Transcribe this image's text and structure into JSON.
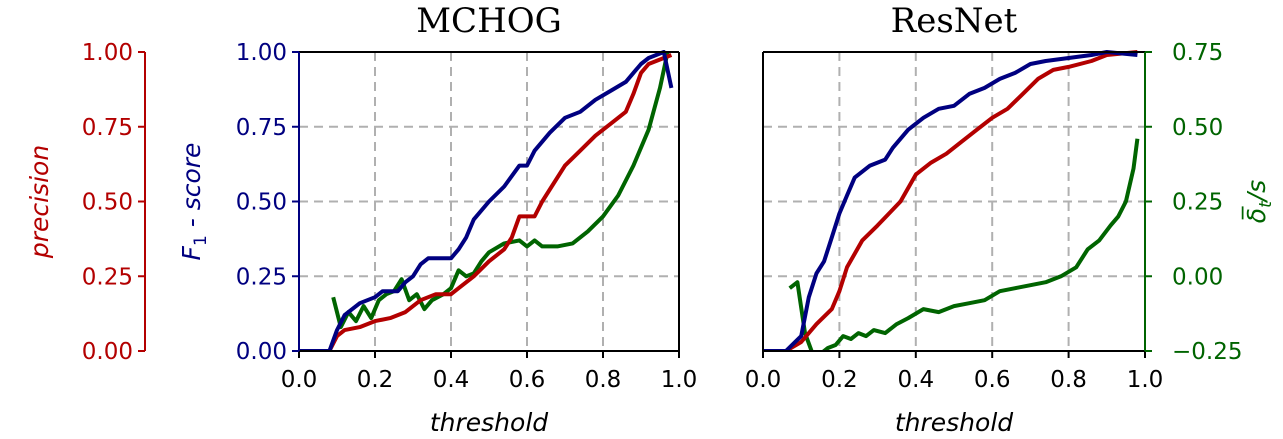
{
  "colors": {
    "precision": "#b30000",
    "f1": "#000080",
    "delta": "#006400",
    "grid": "#b0b0b0",
    "axis": "#000000"
  },
  "precision_axis": {
    "label": "precision",
    "ticks": [
      "1.00",
      "0.75",
      "0.50",
      "0.25",
      "0.00"
    ]
  },
  "chart_data": [
    {
      "type": "line",
      "title": "MCHOG",
      "xlabel": "threshold",
      "ylabel": "F_1 - score",
      "xlim": [
        0,
        1
      ],
      "ylim": [
        0,
        1
      ],
      "grid": true,
      "x_ticks": [
        "0.0",
        "0.2",
        "0.4",
        "0.6",
        "0.8",
        "1.0"
      ],
      "y_ticks": [
        "1.00",
        "0.75",
        "0.50",
        "0.25",
        "0.00"
      ],
      "series": [
        {
          "key": "f1",
          "points": [
            [
              0,
              0
            ],
            [
              0.08,
              0
            ],
            [
              0.1,
              0.07
            ],
            [
              0.12,
              0.12
            ],
            [
              0.16,
              0.16
            ],
            [
              0.2,
              0.18
            ],
            [
              0.22,
              0.2
            ],
            [
              0.26,
              0.2
            ],
            [
              0.28,
              0.23
            ],
            [
              0.3,
              0.25
            ],
            [
              0.32,
              0.29
            ],
            [
              0.34,
              0.31
            ],
            [
              0.4,
              0.31
            ],
            [
              0.42,
              0.34
            ],
            [
              0.44,
              0.38
            ],
            [
              0.46,
              0.44
            ],
            [
              0.5,
              0.5
            ],
            [
              0.54,
              0.55
            ],
            [
              0.58,
              0.62
            ],
            [
              0.6,
              0.62
            ],
            [
              0.62,
              0.67
            ],
            [
              0.66,
              0.73
            ],
            [
              0.7,
              0.78
            ],
            [
              0.74,
              0.8
            ],
            [
              0.78,
              0.84
            ],
            [
              0.82,
              0.87
            ],
            [
              0.86,
              0.9
            ],
            [
              0.88,
              0.93
            ],
            [
              0.9,
              0.96
            ],
            [
              0.92,
              0.98
            ],
            [
              0.96,
              1.0
            ],
            [
              0.98,
              0.88
            ]
          ]
        },
        {
          "key": "precision",
          "points": [
            [
              0,
              0
            ],
            [
              0.08,
              0
            ],
            [
              0.1,
              0.05
            ],
            [
              0.12,
              0.07
            ],
            [
              0.16,
              0.08
            ],
            [
              0.2,
              0.1
            ],
            [
              0.24,
              0.11
            ],
            [
              0.28,
              0.13
            ],
            [
              0.32,
              0.17
            ],
            [
              0.36,
              0.19
            ],
            [
              0.4,
              0.19
            ],
            [
              0.42,
              0.21
            ],
            [
              0.46,
              0.25
            ],
            [
              0.5,
              0.3
            ],
            [
              0.54,
              0.34
            ],
            [
              0.56,
              0.38
            ],
            [
              0.58,
              0.45
            ],
            [
              0.62,
              0.45
            ],
            [
              0.64,
              0.5
            ],
            [
              0.66,
              0.54
            ],
            [
              0.7,
              0.62
            ],
            [
              0.74,
              0.67
            ],
            [
              0.78,
              0.72
            ],
            [
              0.82,
              0.76
            ],
            [
              0.84,
              0.78
            ],
            [
              0.86,
              0.8
            ],
            [
              0.88,
              0.86
            ],
            [
              0.9,
              0.93
            ],
            [
              0.92,
              0.96
            ],
            [
              0.96,
              0.98
            ],
            [
              0.98,
              0.99
            ]
          ]
        },
        {
          "key": "delta",
          "axis": "delta",
          "points": [
            [
              0.09,
              -0.07
            ],
            [
              0.11,
              -0.17
            ],
            [
              0.13,
              -0.12
            ],
            [
              0.15,
              -0.15
            ],
            [
              0.17,
              -0.1
            ],
            [
              0.19,
              -0.14
            ],
            [
              0.21,
              -0.08
            ],
            [
              0.23,
              -0.06
            ],
            [
              0.25,
              -0.05
            ],
            [
              0.27,
              -0.01
            ],
            [
              0.29,
              -0.08
            ],
            [
              0.31,
              -0.06
            ],
            [
              0.33,
              -0.11
            ],
            [
              0.35,
              -0.08
            ],
            [
              0.38,
              -0.06
            ],
            [
              0.4,
              -0.04
            ],
            [
              0.42,
              0.02
            ],
            [
              0.44,
              0.0
            ],
            [
              0.46,
              0.01
            ],
            [
              0.48,
              0.05
            ],
            [
              0.5,
              0.08
            ],
            [
              0.54,
              0.11
            ],
            [
              0.58,
              0.12
            ],
            [
              0.6,
              0.1
            ],
            [
              0.62,
              0.12
            ],
            [
              0.64,
              0.1
            ],
            [
              0.68,
              0.1
            ],
            [
              0.72,
              0.11
            ],
            [
              0.76,
              0.15
            ],
            [
              0.8,
              0.2
            ],
            [
              0.84,
              0.27
            ],
            [
              0.88,
              0.37
            ],
            [
              0.92,
              0.49
            ],
            [
              0.95,
              0.63
            ],
            [
              0.97,
              0.75
            ]
          ]
        }
      ]
    },
    {
      "type": "line",
      "title": "ResNet",
      "xlabel": "threshold",
      "y2label": "δ̅_t/s",
      "xlim": [
        0,
        1
      ],
      "ylim": [
        0,
        1
      ],
      "y2lim": [
        -0.25,
        0.75
      ],
      "grid": true,
      "x_ticks": [
        "0.0",
        "0.2",
        "0.4",
        "0.6",
        "0.8",
        "1.0"
      ],
      "y2_ticks": [
        "0.75",
        "0.50",
        "0.25",
        "0.00",
        "−0.25"
      ],
      "series": [
        {
          "key": "f1",
          "points": [
            [
              0,
              0
            ],
            [
              0.06,
              0
            ],
            [
              0.1,
              0.05
            ],
            [
              0.12,
              0.18
            ],
            [
              0.14,
              0.26
            ],
            [
              0.16,
              0.3
            ],
            [
              0.18,
              0.38
            ],
            [
              0.2,
              0.46
            ],
            [
              0.22,
              0.52
            ],
            [
              0.24,
              0.58
            ],
            [
              0.28,
              0.62
            ],
            [
              0.32,
              0.64
            ],
            [
              0.34,
              0.68
            ],
            [
              0.38,
              0.74
            ],
            [
              0.42,
              0.78
            ],
            [
              0.46,
              0.81
            ],
            [
              0.5,
              0.82
            ],
            [
              0.54,
              0.86
            ],
            [
              0.58,
              0.88
            ],
            [
              0.62,
              0.91
            ],
            [
              0.66,
              0.93
            ],
            [
              0.7,
              0.96
            ],
            [
              0.74,
              0.97
            ],
            [
              0.8,
              0.98
            ],
            [
              0.86,
              0.99
            ],
            [
              0.9,
              1.0
            ],
            [
              0.98,
              0.99
            ]
          ]
        },
        {
          "key": "precision",
          "points": [
            [
              0,
              0
            ],
            [
              0.06,
              0
            ],
            [
              0.1,
              0.03
            ],
            [
              0.14,
              0.09
            ],
            [
              0.18,
              0.14
            ],
            [
              0.2,
              0.2
            ],
            [
              0.22,
              0.28
            ],
            [
              0.26,
              0.37
            ],
            [
              0.3,
              0.42
            ],
            [
              0.36,
              0.5
            ],
            [
              0.4,
              0.59
            ],
            [
              0.44,
              0.63
            ],
            [
              0.48,
              0.66
            ],
            [
              0.52,
              0.7
            ],
            [
              0.56,
              0.74
            ],
            [
              0.6,
              0.78
            ],
            [
              0.64,
              0.81
            ],
            [
              0.68,
              0.86
            ],
            [
              0.72,
              0.91
            ],
            [
              0.76,
              0.94
            ],
            [
              0.8,
              0.95
            ],
            [
              0.86,
              0.97
            ],
            [
              0.9,
              0.99
            ],
            [
              0.98,
              1.0
            ]
          ]
        },
        {
          "key": "delta",
          "axis": "delta",
          "points": [
            [
              0.07,
              -0.04
            ],
            [
              0.09,
              -0.02
            ],
            [
              0.11,
              -0.19
            ],
            [
              0.13,
              -0.26
            ],
            [
              0.15,
              -0.26
            ],
            [
              0.17,
              -0.24
            ],
            [
              0.19,
              -0.23
            ],
            [
              0.21,
              -0.2
            ],
            [
              0.23,
              -0.21
            ],
            [
              0.25,
              -0.19
            ],
            [
              0.27,
              -0.2
            ],
            [
              0.29,
              -0.18
            ],
            [
              0.32,
              -0.19
            ],
            [
              0.35,
              -0.16
            ],
            [
              0.38,
              -0.14
            ],
            [
              0.42,
              -0.11
            ],
            [
              0.46,
              -0.12
            ],
            [
              0.5,
              -0.1
            ],
            [
              0.54,
              -0.09
            ],
            [
              0.58,
              -0.08
            ],
            [
              0.62,
              -0.05
            ],
            [
              0.66,
              -0.04
            ],
            [
              0.7,
              -0.03
            ],
            [
              0.74,
              -0.02
            ],
            [
              0.78,
              0.0
            ],
            [
              0.82,
              0.03
            ],
            [
              0.85,
              0.09
            ],
            [
              0.88,
              0.12
            ],
            [
              0.91,
              0.17
            ],
            [
              0.93,
              0.2
            ],
            [
              0.95,
              0.25
            ],
            [
              0.97,
              0.36
            ],
            [
              0.98,
              0.46
            ]
          ]
        }
      ]
    }
  ]
}
